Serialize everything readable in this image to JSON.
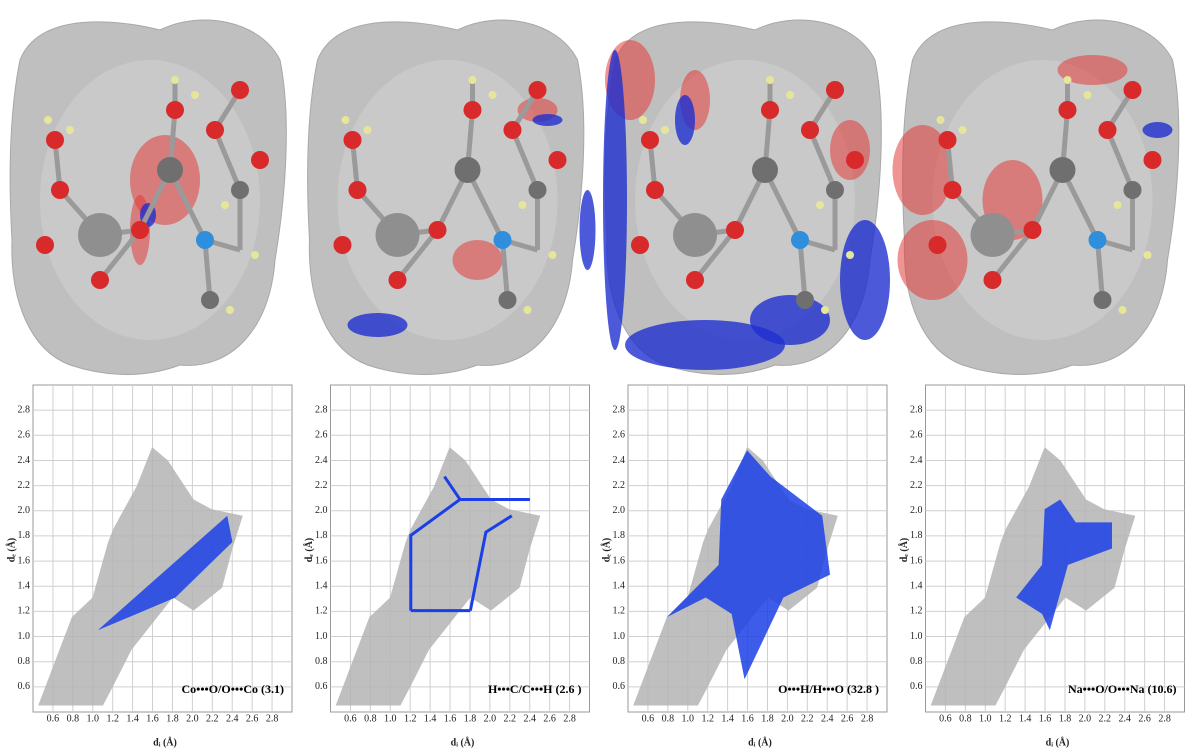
{
  "chart_data": [
    {
      "type": "fingerprint",
      "annotation": "Co•••O/O•••Co (3.1)",
      "x_label": "dᵢ (Å)",
      "y_label": "dₑ (Å)",
      "xlim": [
        0.4,
        3.0
      ],
      "ylim": [
        0.4,
        3.0
      ],
      "xticks": [
        0.6,
        0.8,
        {
          "value": 1,
          "label": "1.0"
        },
        1.2,
        1.4,
        1.6,
        1.8,
        {
          "value": 2,
          "label": "2.0"
        },
        2.2,
        2.4,
        2.6,
        2.8
      ],
      "yticks": [
        0.6,
        0.8,
        {
          "value": 1,
          "label": "1.0"
        },
        1.2,
        1.4,
        1.6,
        1.8,
        {
          "value": 2,
          "label": "2.0"
        },
        2.2,
        2.4,
        2.6,
        2.8
      ],
      "grid": true,
      "cloud_color": "#b4b4b4",
      "highlight_color": "#1b3fe6"
    },
    {
      "type": "fingerprint",
      "annotation": "H•••C/C•••H (2.6 )",
      "x_label": "dᵢ (Å)",
      "y_label": "dₑ (Å)",
      "xlim": [
        0.4,
        3.0
      ],
      "ylim": [
        0.4,
        3.0
      ],
      "xticks": [
        0.6,
        0.8,
        {
          "value": 1,
          "label": "1.0"
        },
        1.2,
        1.4,
        1.6,
        1.8,
        {
          "value": 2,
          "label": "2.0"
        },
        2.2,
        2.4,
        2.6,
        2.8
      ],
      "yticks": [
        0.6,
        0.8,
        {
          "value": 1,
          "label": "1.0"
        },
        1.2,
        1.4,
        1.6,
        1.8,
        {
          "value": 2,
          "label": "2.0"
        },
        2.2,
        2.4,
        2.6,
        2.8
      ],
      "grid": true,
      "cloud_color": "#b4b4b4",
      "highlight_color": "#1b3fe6"
    },
    {
      "type": "fingerprint",
      "annotation": "O•••H/H•••O (32.8 )",
      "x_label": "dᵢ (Å)",
      "y_label": "dₑ (Å)",
      "xlim": [
        0.4,
        3.0
      ],
      "ylim": [
        0.4,
        3.0
      ],
      "xticks": [
        0.6,
        0.8,
        {
          "value": 1,
          "label": "1.0"
        },
        1.2,
        1.4,
        1.6,
        1.8,
        {
          "value": 2,
          "label": "2.0"
        },
        2.2,
        2.4,
        2.6,
        2.8
      ],
      "yticks": [
        0.6,
        0.8,
        {
          "value": 1,
          "label": "1.0"
        },
        1.2,
        1.4,
        1.6,
        1.8,
        {
          "value": 2,
          "label": "2.0"
        },
        2.2,
        2.4,
        2.6,
        2.8
      ],
      "grid": true,
      "cloud_color": "#b4b4b4",
      "highlight_color": "#1b3fe6"
    },
    {
      "type": "fingerprint",
      "annotation": "Na•••O/O•••Na (10.6)",
      "x_label": "dᵢ (Å)",
      "y_label": "dₑ (Å)",
      "xlim": [
        0.4,
        3.0
      ],
      "ylim": [
        0.4,
        3.0
      ],
      "xticks": [
        0.6,
        0.8,
        {
          "value": 1,
          "label": "1.0"
        },
        1.2,
        1.4,
        1.6,
        1.8,
        {
          "value": 2,
          "label": "2.0"
        },
        2.2,
        2.4,
        2.6,
        2.8
      ],
      "yticks": [
        0.6,
        0.8,
        {
          "value": 1,
          "label": "1.0"
        },
        1.2,
        1.4,
        1.6,
        1.8,
        {
          "value": 2,
          "label": "2.0"
        },
        2.2,
        2.4,
        2.6,
        2.8
      ],
      "grid": true,
      "cloud_color": "#b4b4b4",
      "highlight_color": "#1b3fe6"
    }
  ]
}
